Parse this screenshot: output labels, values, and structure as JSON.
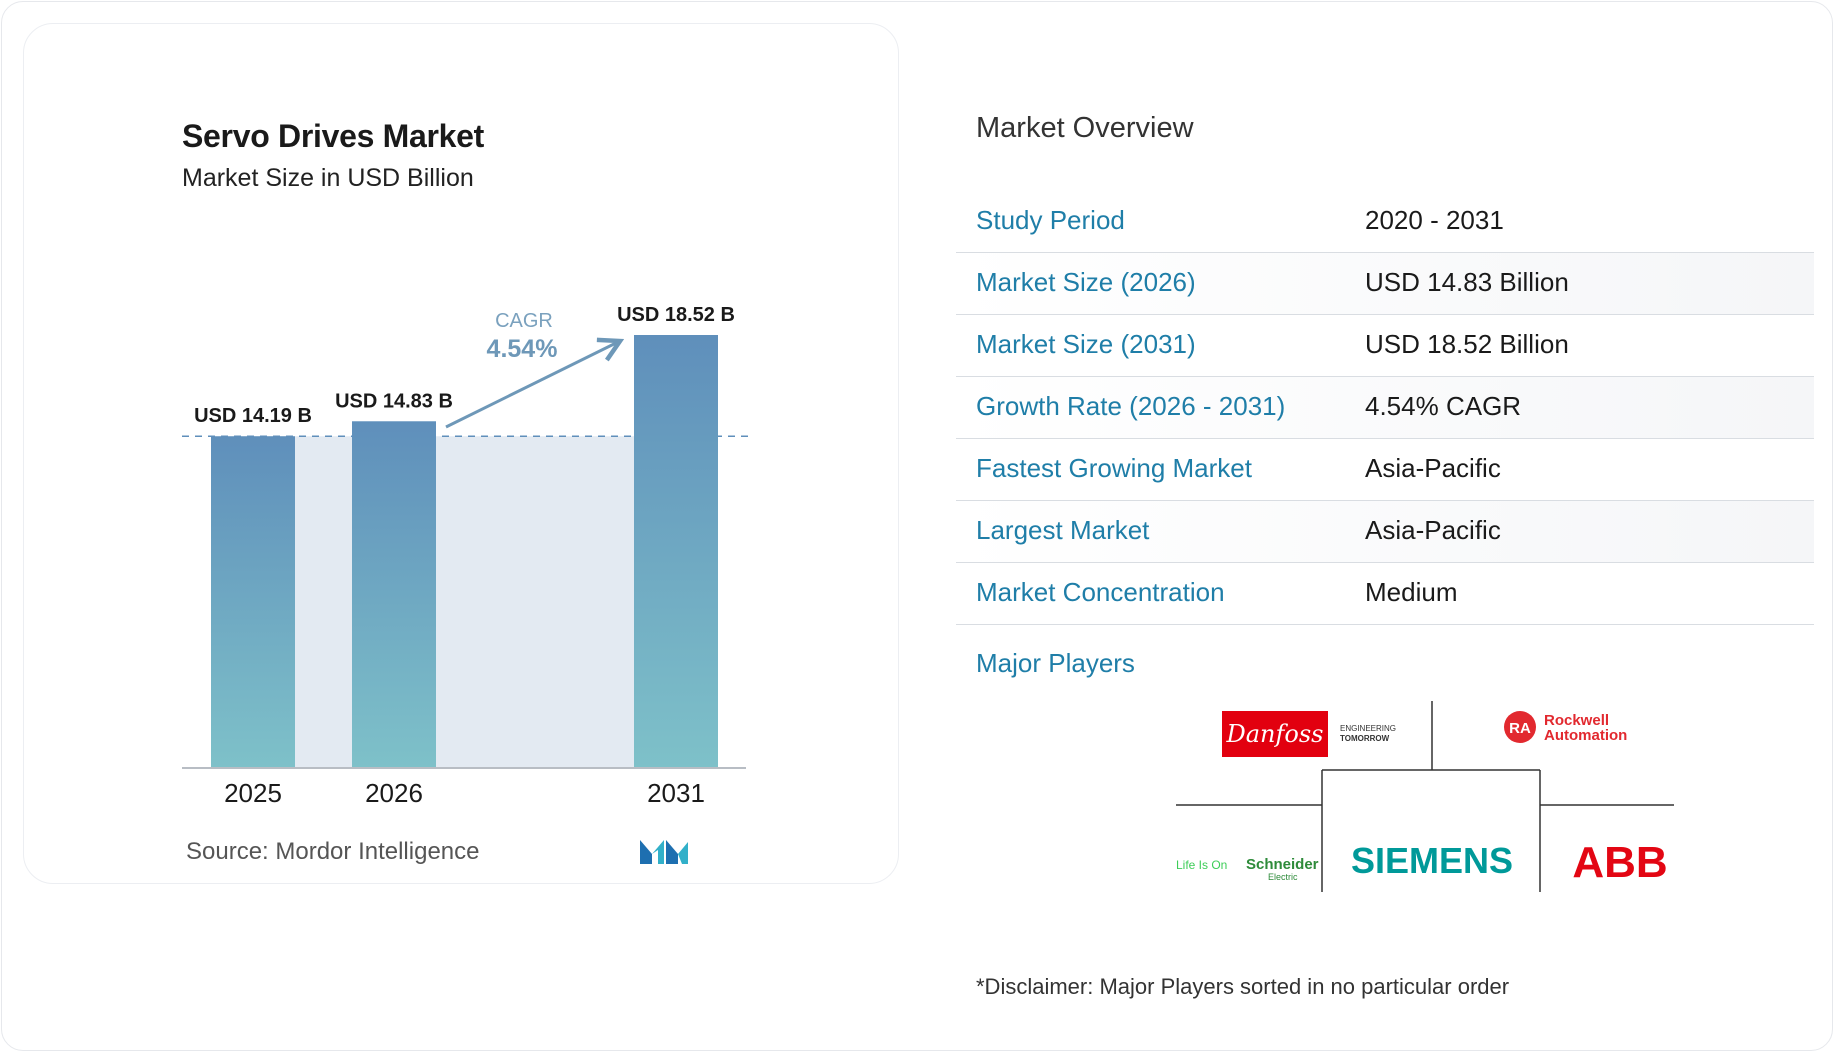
{
  "chart_data": {
    "type": "bar",
    "title": "Servo Drives Market",
    "subtitle": "Market Size in USD Billion",
    "categories": [
      "2025",
      "2026",
      "2031"
    ],
    "values": [
      14.19,
      14.83,
      18.52
    ],
    "data_labels": [
      "USD 14.19 B",
      "USD 14.83 B",
      "USD 18.52 B"
    ],
    "annotation": {
      "label": "CAGR",
      "value": "4.54%"
    },
    "reference_line_value": 14.19,
    "ylim": [
      0,
      18.52
    ],
    "grid": false,
    "colors": {
      "bar_top": "#5f8fbb",
      "bar_bottom": "#7ec1c9",
      "band": "#e3eaf2",
      "arrow": "#6e98b8",
      "axis": "#b8bdc4"
    }
  },
  "source": "Source:  Mordor Intelligence",
  "overview": {
    "title": "Market Overview",
    "rows": [
      {
        "label": "Study Period",
        "value": "2020 - 2031"
      },
      {
        "label": "Market Size (2026)",
        "value": "USD 14.83 Billion"
      },
      {
        "label": "Market Size (2031)",
        "value": "USD 18.52 Billion"
      },
      {
        "label": "Growth Rate (2026 - 2031)",
        "value": "4.54% CAGR"
      },
      {
        "label": "Fastest Growing Market",
        "value": "Asia-Pacific"
      },
      {
        "label": "Largest Market",
        "value": "Asia-Pacific"
      },
      {
        "label": "Market Concentration",
        "value": "Medium"
      }
    ],
    "major_players_label": "Major Players",
    "players": [
      {
        "name": "Danfoss",
        "tagline_1": "ENGINEERING",
        "tagline_2": "TOMORROW",
        "color": "#e2000f"
      },
      {
        "name": "Rockwell",
        "name_2": "Automation",
        "badge": "RA",
        "color": "#e2292f"
      },
      {
        "name": "Schneider",
        "name_2": "Electric",
        "tagline": "Life Is On",
        "color": "#3dcd58"
      },
      {
        "name": "SIEMENS",
        "color": "#009999"
      },
      {
        "name": "ABB",
        "color": "#e30613"
      }
    ],
    "disclaimer": "*Disclaimer: Major Players sorted in no particular order"
  }
}
